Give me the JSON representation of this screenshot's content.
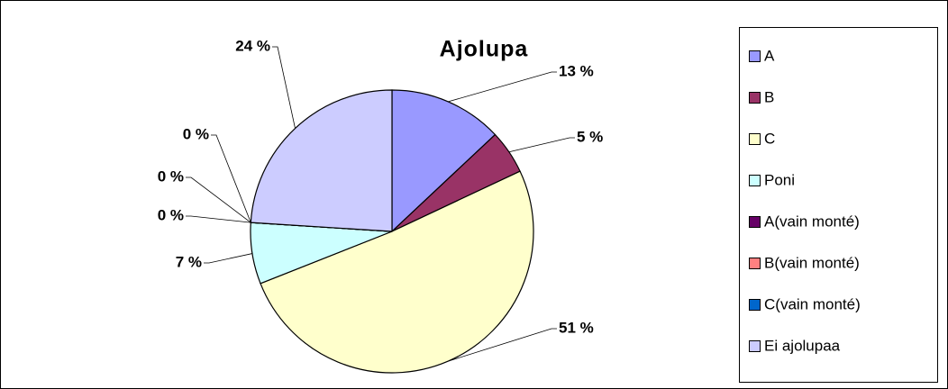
{
  "chart_data": {
    "type": "pie",
    "title": "Ajolupa",
    "categories": [
      "A",
      "B",
      "C",
      "Poni",
      "A(vain monté)",
      "B(vain monté)",
      "C(vain monté)",
      "Ei ajolupaa"
    ],
    "values": [
      13,
      5,
      51,
      7,
      0,
      0,
      0,
      24
    ],
    "value_labels": [
      "13 %",
      "5 %",
      "51 %",
      "7 %",
      "0 %",
      "0 %",
      "0 %",
      "24 %"
    ],
    "colors": [
      "#9999ff",
      "#993366",
      "#ffffcc",
      "#ccffff",
      "#660066",
      "#ff8080",
      "#0066cc",
      "#ccccff"
    ],
    "legend": "right"
  }
}
